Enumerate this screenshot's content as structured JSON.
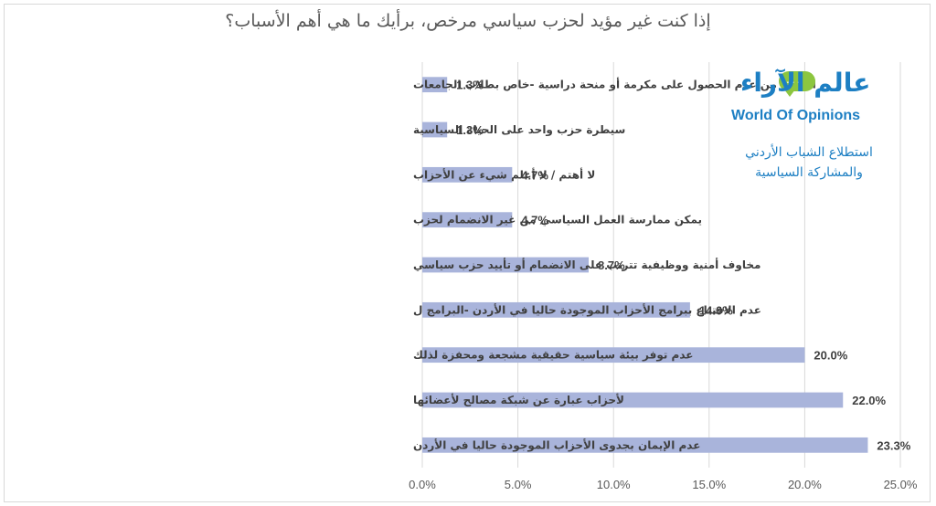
{
  "chart_data": {
    "type": "bar",
    "orientation": "horizontal",
    "title": "إذا كنت غير مؤيد لحزب سياسي مرخص، برأيك ما هي أهم الأسباب؟",
    "categories": [
      "الخوف من عدم الحصول على مكرمة أو منحة دراسية -خاص بطلاب الجامعات",
      "سيطرة حزب واحد على الحياة السياسية",
      "لا أهتم / لا أعلم شيء عن الأحزاب",
      "يمكن ممارسة العمل السياسي من غير الانضمام لحزب",
      "مخاوف أمنية ووظيفية تترتب على الانضمام أو تأييد حزب سياسي",
      "عدم الاقتناع ببرامج الأحزاب الموجودة حاليا في الأردن -البرامج ل",
      "عدم توفر بيئة سياسية حقيقية مشجعة ومحفزة لذلك",
      "لأحزاب عبارة عن شبكة مصالح لأعضائها",
      "عدم الإيمان بجدوى الأحزاب الموجودة حاليا في الأردن"
    ],
    "values": [
      1.3,
      1.3,
      4.7,
      4.7,
      8.7,
      14.0,
      20.0,
      22.0,
      23.3
    ],
    "value_labels": [
      "1.3%",
      "1.3%",
      "4.7%",
      "4.7%",
      "8.7%",
      "14.0%",
      "20.0%",
      "22.0%",
      "23.3%"
    ],
    "x_ticks": [
      "0.0%",
      "5.0%",
      "10.0%",
      "15.0%",
      "20.0%",
      "25.0%"
    ],
    "xlim": [
      0,
      25
    ],
    "xlabel": "",
    "ylabel": "",
    "grid": true,
    "colors": {
      "bar": "#a9b4db",
      "grid": "#d9d9d9",
      "text": "#404040"
    }
  },
  "logo": {
    "arabic": "عالم الآراء",
    "dots": "...",
    "english": "World Of Opinions",
    "subtitle_line1": "استطلاع الشباب الأردني",
    "subtitle_line2": "والمشاركة السياسية",
    "colors": {
      "blue": "#1d7fc3",
      "green": "#8cc63f"
    }
  }
}
